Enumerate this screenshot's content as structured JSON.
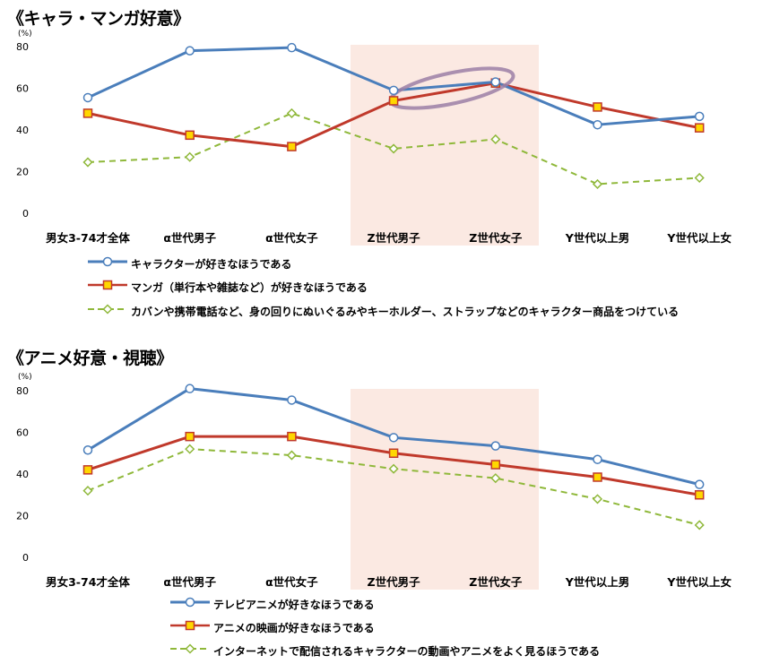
{
  "colors": {
    "series_blue": "#4a7ebb",
    "series_red": "#c0392b",
    "series_green": "#8fb83a",
    "highlight_band": "#fbe9e2",
    "ellipse": "#9b7fa6",
    "marker_yellow": "#ffd700"
  },
  "chart_data": [
    {
      "type": "line",
      "title": "《キャラ・マンガ好意》",
      "unit_label": "(%)",
      "ylim": [
        0,
        80
      ],
      "yticks": [
        0,
        20,
        40,
        60,
        80
      ],
      "grid": false,
      "categories": [
        "男女3-74才全体",
        "α世代男子",
        "α世代女子",
        "Z世代男子",
        "Z世代女子",
        "Y世代以上男",
        "Y世代以上女"
      ],
      "highlight_categories": [
        "Z世代男子",
        "Z世代女子"
      ],
      "series": [
        {
          "name": "キャラクターが好きなほうである",
          "values": [
            55.5,
            78,
            79.5,
            59,
            63,
            42.5,
            46.5
          ],
          "color": "#4a7ebb",
          "style": "solid",
          "marker": "circle"
        },
        {
          "name": "マンガ（単行本や雑誌など）が好きなほうである",
          "values": [
            48,
            37.5,
            32,
            54,
            62.5,
            51,
            41
          ],
          "color": "#c0392b",
          "style": "solid",
          "marker": "square"
        },
        {
          "name": "カバンや携帯電話など、身の回りにぬいぐるみやキーホルダー、ストラップなどのキャラクター商品をつけている",
          "values": [
            24.5,
            27,
            48,
            31,
            35.5,
            14,
            17
          ],
          "color": "#8fb83a",
          "style": "dashed",
          "marker": "diamond"
        }
      ],
      "annotation": "ellipse around Z世代男子–Z世代女子 at ~60%"
    },
    {
      "type": "line",
      "title": "《アニメ好意・視聴》",
      "unit_label": "(%)",
      "ylim": [
        0,
        80
      ],
      "yticks": [
        0,
        20,
        40,
        60,
        80
      ],
      "grid": false,
      "categories": [
        "男女3-74才全体",
        "α世代男子",
        "α世代女子",
        "Z世代男子",
        "Z世代女子",
        "Y世代以上男",
        "Y世代以上女"
      ],
      "highlight_categories": [
        "Z世代男子",
        "Z世代女子"
      ],
      "series": [
        {
          "name": "テレビアニメが好きなほうである",
          "values": [
            51.5,
            81,
            75.5,
            57.5,
            53.5,
            47,
            35
          ],
          "color": "#4a7ebb",
          "style": "solid",
          "marker": "circle"
        },
        {
          "name": "アニメの映画が好きなほうである",
          "values": [
            42,
            58,
            58,
            50,
            44.5,
            38.5,
            30
          ],
          "color": "#c0392b",
          "style": "solid",
          "marker": "square"
        },
        {
          "name": "インターネットで配信されるキャラクターの動画やアニメをよく見るほうである",
          "values": [
            32,
            52,
            49,
            42.5,
            38,
            28,
            15.5
          ],
          "color": "#8fb83a",
          "style": "dashed",
          "marker": "diamond"
        }
      ]
    }
  ]
}
